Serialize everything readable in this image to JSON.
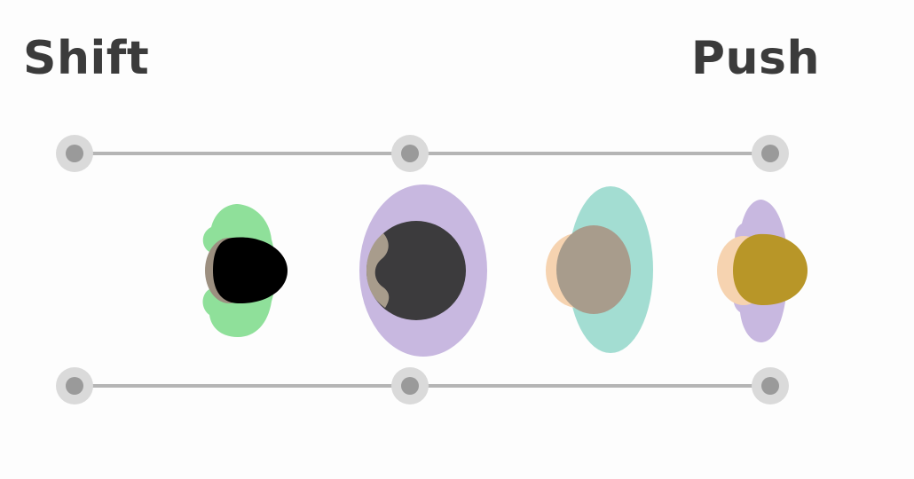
{
  "labels": {
    "left": "Shift",
    "right": "Push"
  },
  "colors": {
    "background": "#fdfdfd",
    "text": "#3b3b3b",
    "track_line": "#b5b5b5",
    "handle_ring": "#dadada",
    "handle_dot": "#9a9a9a",
    "green": "#8fe09a",
    "black": "#000000",
    "taupe": "#9c8f80",
    "purple": "#c8b8e0",
    "dark_gray": "#3c3b3d",
    "beige_gray": "#a89c8c",
    "teal": "#a3ddd2",
    "peach": "#f6d3b0",
    "gold": "#b89628"
  }
}
